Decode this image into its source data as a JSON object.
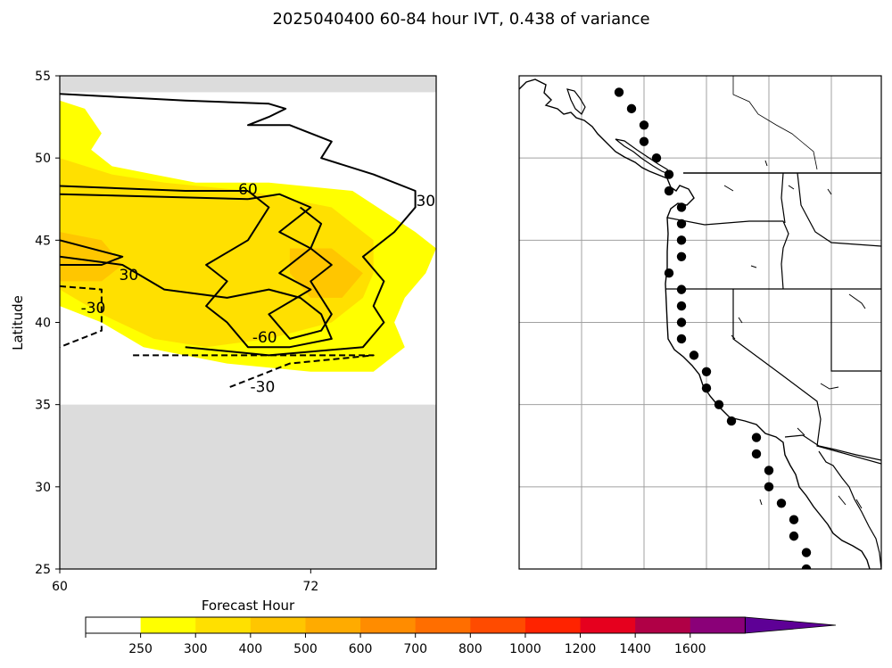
{
  "chart_data": [
    {
      "type": "contour",
      "title": "2025040400 60-84 hour IVT, 0.438 of variance",
      "xlabel": "Forecast Hour",
      "ylabel": "Latitude",
      "xlim": [
        60,
        78
      ],
      "ylim": [
        25,
        55
      ],
      "xticks": [
        "60",
        "72"
      ],
      "yticks": [
        "25",
        "30",
        "35",
        "40",
        "45",
        "50",
        "55"
      ],
      "no_data_bands": [
        {
          "lat_from": 54,
          "lat_to": 55,
          "color": "#dcdcdc"
        },
        {
          "lat_from": 25,
          "lat_to": 35,
          "color": "#dcdcdc"
        }
      ],
      "filled_regions": [
        {
          "level": 250,
          "color": "#ffff00",
          "points": [
            [
              60,
              53.5
            ],
            [
              61.2,
              53
            ],
            [
              62,
              51.5
            ],
            [
              61.5,
              50.5
            ],
            [
              62.5,
              49.5
            ],
            [
              64.5,
              49
            ],
            [
              66.5,
              48.5
            ],
            [
              70,
              48.5
            ],
            [
              74,
              48
            ],
            [
              77,
              45.5
            ],
            [
              78,
              44.5
            ],
            [
              77.5,
              43
            ],
            [
              76.5,
              41.5
            ],
            [
              76,
              40
            ],
            [
              76.5,
              38.5
            ],
            [
              75,
              37
            ],
            [
              72,
              37
            ],
            [
              68,
              37.5
            ],
            [
              64,
              38.5
            ],
            [
              62,
              40
            ],
            [
              60,
              41
            ]
          ]
        },
        {
          "level": 300,
          "color": "#ffe000",
          "points": [
            [
              60,
              50
            ],
            [
              62.5,
              49
            ],
            [
              65,
              48.5
            ],
            [
              69,
              48
            ],
            [
              73,
              47
            ],
            [
              75,
              45
            ],
            [
              75,
              43
            ],
            [
              74.5,
              41.5
            ],
            [
              73,
              40
            ],
            [
              70,
              39
            ],
            [
              67,
              38.5
            ],
            [
              64.5,
              39
            ],
            [
              62,
              40.5
            ],
            [
              60,
              42
            ]
          ]
        },
        {
          "level": 400,
          "color": "#ffc600",
          "points": [
            [
              60,
              45.5
            ],
            [
              62,
              45
            ],
            [
              63,
              43.5
            ],
            [
              62,
              42.5
            ],
            [
              60,
              42.5
            ]
          ]
        },
        {
          "level": 400,
          "color": "#ffc600",
          "points": [
            [
              71,
              44.5
            ],
            [
              73,
              44.5
            ],
            [
              74.5,
              43
            ],
            [
              73.5,
              41.5
            ],
            [
              72,
              41.5
            ],
            [
              71,
              43
            ]
          ]
        }
      ],
      "contours": [
        {
          "label": "60",
          "style": "solid",
          "points": [
            [
              60,
              48.3
            ],
            [
              66,
              48
            ],
            [
              69,
              48
            ]
          ]
        },
        {
          "label": "60",
          "style": "solid",
          "points": [
            [
              60,
              47.8
            ],
            [
              66,
              47.6
            ],
            [
              69,
              47.5
            ]
          ]
        },
        {
          "label": "60",
          "style": "solid",
          "points": [
            [
              69,
              47.5
            ],
            [
              70.5,
              47.8
            ],
            [
              72,
              47
            ],
            [
              70.5,
              45.5
            ],
            [
              72,
              44.5
            ],
            [
              70.5,
              43
            ],
            [
              72,
              42
            ],
            [
              70,
              40.5
            ],
            [
              71,
              39
            ],
            [
              72.5,
              39.5
            ],
            [
              73,
              40.5
            ],
            [
              72.5,
              41.5
            ],
            [
              72,
              42.5
            ],
            [
              73,
              43.5
            ],
            [
              72,
              44.5
            ],
            [
              72.5,
              46
            ],
            [
              71.5,
              47
            ]
          ]
        },
        {
          "label": "60",
          "style": "solid",
          "points": [
            [
              60,
              44
            ],
            [
              63,
              43.5
            ],
            [
              65,
              42
            ],
            [
              68,
              41.5
            ],
            [
              70,
              42
            ],
            [
              71.5,
              41.5
            ],
            [
              72.5,
              40.5
            ],
            [
              73,
              39
            ],
            [
              71,
              38.5
            ],
            [
              69,
              38.5
            ],
            [
              68,
              40
            ],
            [
              67,
              41
            ],
            [
              68,
              42.5
            ],
            [
              67,
              43.5
            ],
            [
              69,
              45
            ],
            [
              70,
              47
            ],
            [
              69,
              48
            ]
          ]
        },
        {
          "label": "30",
          "style": "solid",
          "points": [
            [
              60,
              53.9
            ],
            [
              66,
              53.5
            ],
            [
              70,
              53.3
            ],
            [
              70.8,
              53
            ],
            [
              70,
              52.5
            ],
            [
              69,
              52
            ],
            [
              71,
              52
            ],
            [
              73,
              51
            ],
            [
              72.5,
              50
            ],
            [
              75,
              49
            ],
            [
              77,
              48
            ],
            [
              77,
              47
            ],
            [
              76,
              45.5
            ],
            [
              74.5,
              44
            ],
            [
              75.5,
              42.5
            ],
            [
              75,
              41
            ],
            [
              75.5,
              40
            ],
            [
              74.5,
              38.5
            ],
            [
              70,
              38
            ],
            [
              66,
              38.5
            ]
          ]
        },
        {
          "label": "30",
          "style": "solid",
          "points": [
            [
              60,
              45
            ],
            [
              63,
              44
            ],
            [
              62,
              43.5
            ],
            [
              60,
              43.5
            ]
          ]
        },
        {
          "label": "-30",
          "style": "dashed",
          "points": [
            [
              60,
              42.2
            ],
            [
              62,
              42
            ],
            [
              62,
              39.5
            ],
            [
              60,
              38.5
            ]
          ]
        },
        {
          "label": "-30",
          "style": "dashed",
          "points": [
            [
              63.5,
              38
            ],
            [
              75,
              38
            ],
            [
              71,
              37.5
            ],
            [
              68,
              36
            ]
          ]
        }
      ],
      "contour_labels": [
        {
          "text": "60",
          "x": 69,
          "y": 48.1
        },
        {
          "text": "30",
          "x": 77.5,
          "y": 47.4
        },
        {
          "text": "30",
          "x": 63.3,
          "y": 42.9
        },
        {
          "text": "-30",
          "x": 61.6,
          "y": 40.9
        },
        {
          "text": "-60",
          "x": 69.8,
          "y": 39.1
        },
        {
          "text": "-30",
          "x": 69.7,
          "y": 36.1
        }
      ],
      "grid": false
    },
    {
      "type": "map",
      "region": "US West Coast and Baja California",
      "lon_range": [
        -140,
        -111
      ],
      "lat_range": [
        25,
        55
      ],
      "gridlines": {
        "lon": [
          -135,
          -130,
          -125,
          -120,
          -115
        ],
        "lat": [
          30,
          35,
          40,
          45,
          50
        ]
      },
      "station_points": [
        [
          -132.0,
          54.0
        ],
        [
          -131.0,
          53.0
        ],
        [
          -130.0,
          52.0
        ],
        [
          -130.0,
          51.0
        ],
        [
          -129.0,
          50.0
        ],
        [
          -128.0,
          49.0
        ],
        [
          -128.0,
          48.0
        ],
        [
          -127.0,
          47.0
        ],
        [
          -127.0,
          46.0
        ],
        [
          -127.0,
          45.0
        ],
        [
          -127.0,
          44.0
        ],
        [
          -128.0,
          43.0
        ],
        [
          -127.0,
          42.0
        ],
        [
          -127.0,
          41.0
        ],
        [
          -127.0,
          40.0
        ],
        [
          -127.0,
          39.0
        ],
        [
          -126.0,
          38.0
        ],
        [
          -125.0,
          37.0
        ],
        [
          -125.0,
          36.0
        ],
        [
          -124.0,
          35.0
        ],
        [
          -123.0,
          34.0
        ],
        [
          -121.0,
          33.0
        ],
        [
          -121.0,
          32.0
        ],
        [
          -120.0,
          31.0
        ],
        [
          -120.0,
          30.0
        ],
        [
          -119.0,
          29.0
        ],
        [
          -118.0,
          28.0
        ],
        [
          -118.0,
          27.0
        ],
        [
          -117.0,
          26.0
        ],
        [
          -117.0,
          25.0
        ]
      ]
    }
  ],
  "colorbar": {
    "levels": [
      "250",
      "300",
      "400",
      "500",
      "600",
      "700",
      "800",
      "1000",
      "1200",
      "1400",
      "1600"
    ],
    "colors": [
      "#ffffff",
      "#ffff00",
      "#ffe000",
      "#ffc600",
      "#ffab00",
      "#ff8c00",
      "#ff6e00",
      "#ff4b00",
      "#ff2300",
      "#e6001e",
      "#b00046",
      "#8a0078",
      "#5e0096"
    ],
    "extend": "max"
  },
  "palette": {
    "no_data": "#dcdcdc",
    "contour": "#000000",
    "station": "#000000"
  }
}
